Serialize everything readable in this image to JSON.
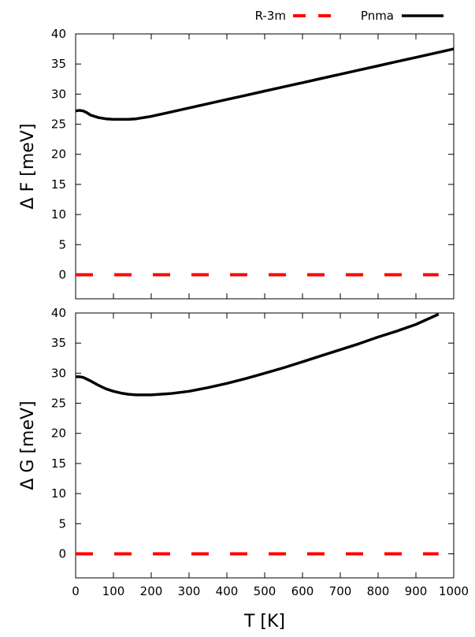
{
  "chart_data": [
    {
      "type": "line",
      "ylabel": "Δ F [meV]",
      "xlim": [
        0,
        1000
      ],
      "ylim": [
        -4,
        40
      ],
      "yticks": [
        0,
        5,
        10,
        15,
        20,
        25,
        30,
        35,
        40
      ],
      "xticks": [
        0,
        100,
        200,
        300,
        400,
        500,
        600,
        700,
        800,
        900,
        1000
      ],
      "series": [
        {
          "name": "R-3m",
          "color": "#ff0000",
          "style": "dashed",
          "x": [
            0,
            960
          ],
          "y": [
            0,
            0
          ]
        },
        {
          "name": "Pnma",
          "color": "#000000",
          "style": "solid",
          "x": [
            0,
            10,
            20,
            30,
            40,
            60,
            80,
            100,
            120,
            140,
            160,
            200,
            250,
            300,
            350,
            400,
            450,
            500,
            550,
            600,
            650,
            700,
            750,
            800,
            850,
            900,
            950,
            1000
          ],
          "y": [
            27.2,
            27.3,
            27.2,
            26.9,
            26.5,
            26.1,
            25.9,
            25.8,
            25.8,
            25.8,
            25.9,
            26.3,
            27.0,
            27.7,
            28.4,
            29.1,
            29.8,
            30.5,
            31.2,
            31.9,
            32.6,
            33.3,
            34.0,
            34.7,
            35.4,
            36.1,
            36.8,
            37.5
          ]
        }
      ]
    },
    {
      "type": "line",
      "xlabel": "T [K]",
      "ylabel": "Δ G [meV]",
      "xlim": [
        0,
        1000
      ],
      "ylim": [
        -4,
        40
      ],
      "yticks": [
        0,
        5,
        10,
        15,
        20,
        25,
        30,
        35,
        40
      ],
      "xticks": [
        0,
        100,
        200,
        300,
        400,
        500,
        600,
        700,
        800,
        900,
        1000
      ],
      "series": [
        {
          "name": "R-3m",
          "color": "#ff0000",
          "style": "dashed",
          "x": [
            0,
            960
          ],
          "y": [
            0,
            0
          ]
        },
        {
          "name": "Pnma",
          "color": "#000000",
          "style": "solid",
          "x": [
            0,
            10,
            20,
            30,
            40,
            60,
            80,
            100,
            120,
            140,
            160,
            180,
            200,
            250,
            300,
            350,
            400,
            450,
            500,
            550,
            600,
            650,
            700,
            750,
            800,
            850,
            900,
            960
          ],
          "y": [
            29.4,
            29.4,
            29.3,
            29.0,
            28.7,
            28.0,
            27.4,
            27.0,
            26.7,
            26.5,
            26.4,
            26.4,
            26.4,
            26.6,
            27.0,
            27.6,
            28.3,
            29.1,
            30.0,
            30.9,
            31.9,
            32.9,
            33.9,
            34.9,
            36.0,
            37.0,
            38.1,
            39.8
          ]
        }
      ]
    }
  ],
  "legend": {
    "position": "top-right",
    "items": [
      {
        "label": "R-3m",
        "color": "#ff0000",
        "style": "dashed"
      },
      {
        "label": "Pnma",
        "color": "#000000",
        "style": "solid"
      }
    ]
  }
}
